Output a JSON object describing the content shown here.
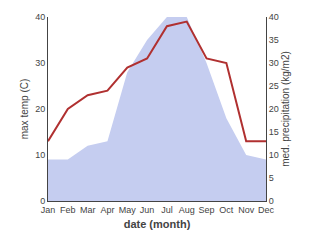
{
  "chart_data": {
    "type": "line",
    "x_label": "date (month)",
    "y_label": "max temp (C)",
    "y2_label": "med. precipitation (kg/m2)",
    "categories": [
      "Jan",
      "Feb",
      "Mar",
      "Apr",
      "May",
      "Jun",
      "Jul",
      "Aug",
      "Sep",
      "Oct",
      "Nov",
      "Dec"
    ],
    "series": [
      {
        "type": "area",
        "color": "#c5cdf0",
        "axis": "y2",
        "values": [
          9,
          9,
          12,
          13,
          28,
          35,
          40,
          40,
          30,
          18,
          10,
          9
        ]
      },
      {
        "type": "line",
        "color": "#b03030",
        "values": [
          13,
          20,
          23,
          24,
          29,
          31,
          38,
          39,
          31,
          30,
          13,
          13
        ]
      }
    ],
    "ylim": [
      0,
      40
    ],
    "yticks": [
      0,
      10,
      20,
      30,
      40
    ],
    "y2lim": [
      0,
      40
    ],
    "y2ticks": [
      0,
      5,
      10,
      15,
      20,
      25,
      30,
      35,
      40
    ],
    "grid": false
  }
}
